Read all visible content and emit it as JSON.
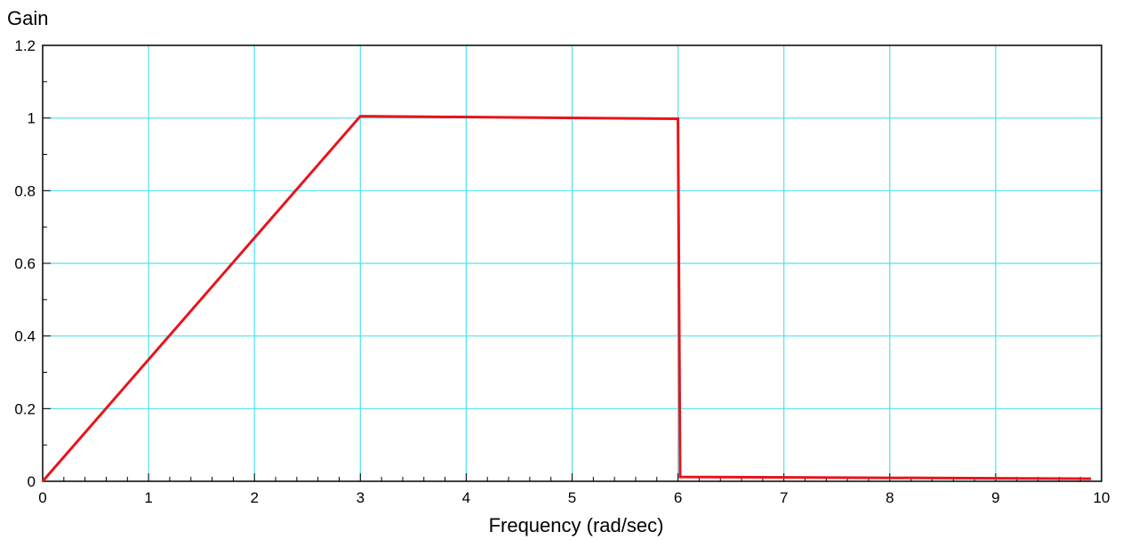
{
  "chart_data": {
    "type": "line",
    "title": "",
    "xlabel": "Frequency (rad/sec)",
    "ylabel": "Gain",
    "xlim": [
      0,
      10
    ],
    "ylim": [
      0,
      1.2
    ],
    "x_ticks": [
      "0",
      "1",
      "2",
      "3",
      "4",
      "5",
      "6",
      "7",
      "8",
      "9",
      "10"
    ],
    "y_ticks": [
      "0",
      "0.2",
      "0.4",
      "0.6",
      "0.8",
      "1",
      "1.2"
    ],
    "grid": true,
    "colors": {
      "series": "#e8141b",
      "grid": "#4fe3ee",
      "axis": "#000000"
    },
    "series": [
      {
        "x": [
          0,
          3,
          6,
          6.02,
          9.9
        ],
        "y": [
          0,
          1.005,
          0.998,
          0.012,
          0.007
        ]
      }
    ]
  }
}
